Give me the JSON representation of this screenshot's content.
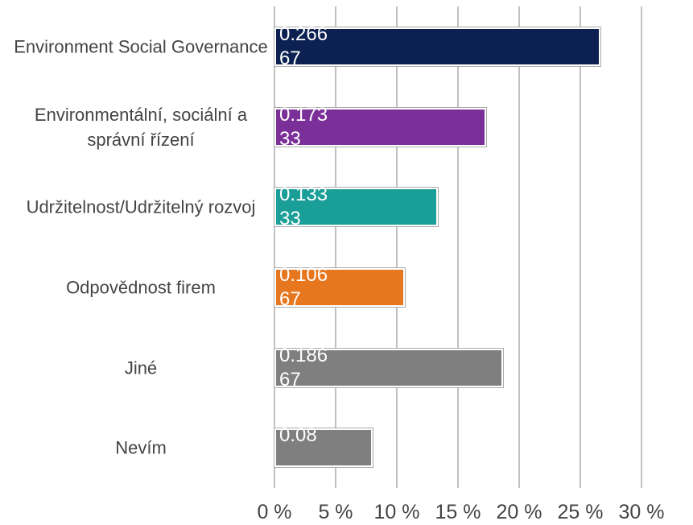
{
  "chart_data": {
    "type": "hbar",
    "categories": [
      "Environment Social Governance",
      "Environmentální, sociální a správní řízení",
      "Udržitelnost/Udržitelný rozvoj",
      "Odpovědnost firem",
      "Jiné",
      "Nevím"
    ],
    "values": [
      26.667,
      17.333,
      13.333,
      10.667,
      18.667,
      8
    ],
    "value_labels": [
      "0.26667",
      "0.17333",
      "0.13333",
      "0.10667",
      "0.18667",
      "0.08"
    ],
    "colors": [
      "#0c2152",
      "#7b2f98",
      "#1a9e98",
      "#e6771f",
      "#7f7f7f",
      "#7f7f7f"
    ],
    "xlim": [
      0,
      30
    ],
    "xticks": [
      {
        "value": 0,
        "label": "0 %"
      },
      {
        "value": 5,
        "label": "5 %"
      },
      {
        "value": 10,
        "label": "10 %"
      },
      {
        "value": 15,
        "label": "15 %"
      },
      {
        "value": 20,
        "label": "20 %"
      },
      {
        "value": 25,
        "label": "25 %"
      },
      {
        "value": 30,
        "label": "30 %"
      }
    ],
    "grid": true
  }
}
